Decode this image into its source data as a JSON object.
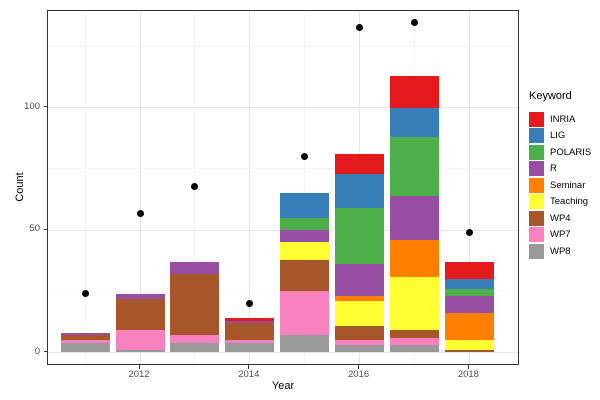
{
  "chart_data": {
    "type": "bar",
    "stacked": true,
    "stack_order": "reverse-legend (WP8 at bottom, INRIA on top)",
    "title": "",
    "xlabel": "Year",
    "ylabel": "Count",
    "legend": {
      "title": "Keyword",
      "position": "right"
    },
    "categories": [
      2011,
      2012,
      2013,
      2014,
      2015,
      2016,
      2017,
      2018
    ],
    "series": [
      {
        "name": "INRIA",
        "color": "#e41a1c",
        "values": [
          0,
          0,
          0,
          1,
          0,
          8,
          13,
          7
        ]
      },
      {
        "name": "LIG",
        "color": "#377eb8",
        "values": [
          0,
          0,
          0,
          0,
          10,
          14,
          12,
          4
        ]
      },
      {
        "name": "POLARIS",
        "color": "#4daf4a",
        "values": [
          0,
          0,
          0,
          0,
          5,
          23,
          24,
          3
        ]
      },
      {
        "name": "R",
        "color": "#984ea3",
        "values": [
          1,
          2,
          5,
          1,
          5,
          13,
          18,
          7
        ]
      },
      {
        "name": "Seminar",
        "color": "#ff7f00",
        "values": [
          0,
          0,
          0,
          0,
          0,
          2,
          15,
          11
        ]
      },
      {
        "name": "Teaching",
        "color": "#ffff33",
        "values": [
          0,
          0,
          0,
          0,
          7,
          10,
          22,
          4
        ]
      },
      {
        "name": "WP4",
        "color": "#a65628",
        "values": [
          2,
          13,
          25,
          7,
          13,
          6,
          3,
          1
        ]
      },
      {
        "name": "WP7",
        "color": "#f781bf",
        "values": [
          1,
          8,
          3,
          1,
          18,
          2,
          3,
          0
        ]
      },
      {
        "name": "WP8",
        "color": "#999999",
        "values": [
          4,
          1,
          4,
          4,
          7,
          3,
          3,
          0
        ]
      }
    ],
    "bar_totals": [
      8,
      24,
      37,
      14,
      65,
      81,
      113,
      37
    ],
    "points_overlay": {
      "color": "#000000",
      "values": [
        24,
        57,
        68,
        20,
        80,
        133,
        135,
        49
      ]
    },
    "axes": {
      "yticks": [
        0,
        50,
        100
      ],
      "y_minor": [
        25,
        75,
        125
      ],
      "xticks": [
        2012,
        2014,
        2016,
        2018
      ],
      "x_minor": [
        2011,
        2013,
        2015,
        2017
      ],
      "ylim": [
        -5.5,
        139.5
      ],
      "xlim": [
        2010.3,
        2018.9
      ],
      "grid": true
    },
    "style_colors": {
      "background": "#ffffff",
      "panel_border": "#333333",
      "major_grid": "#e4e4e4",
      "minor_grid": "#f3f3f3",
      "axis_text": "#4d4d4d"
    }
  }
}
